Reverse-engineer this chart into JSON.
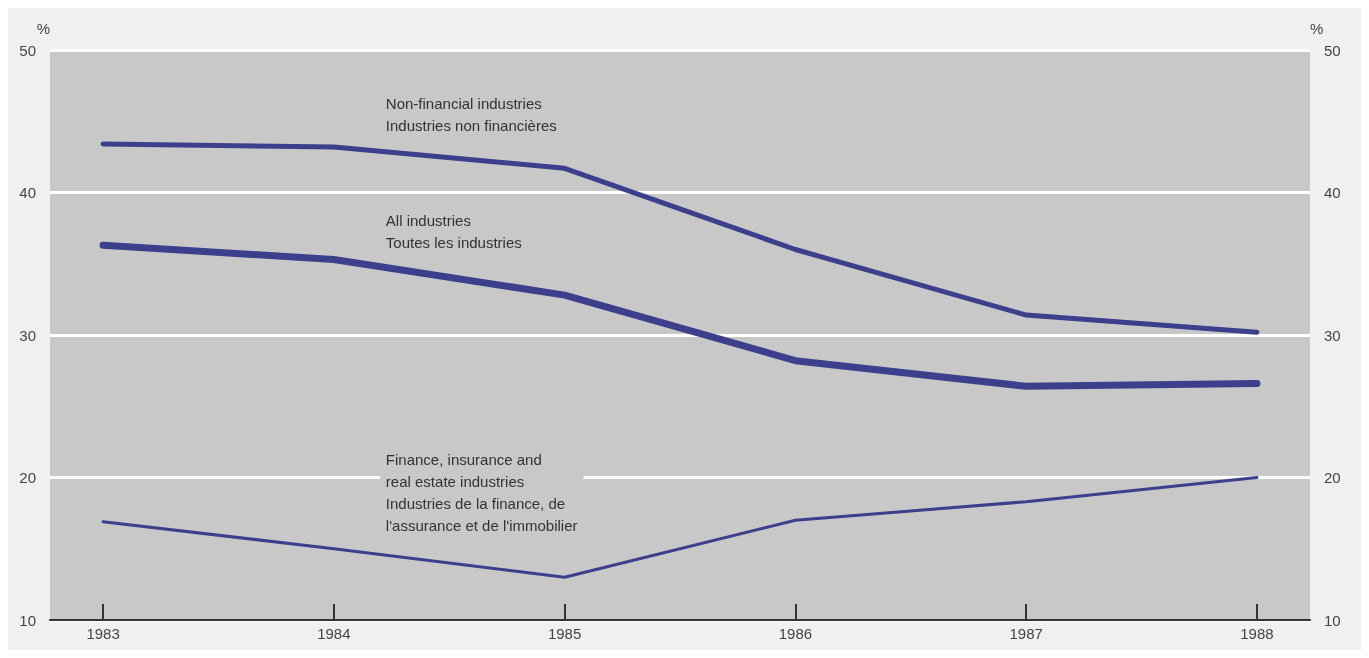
{
  "chart_data": {
    "type": "line",
    "ylabel": "%",
    "y2label": "%",
    "x": [
      1983,
      1984,
      1985,
      1986,
      1987,
      1988
    ],
    "xlim": [
      1982.77,
      1988.23
    ],
    "xticks": [
      1983,
      1984,
      1985,
      1986,
      1987,
      1988
    ],
    "ylim": [
      10,
      50
    ],
    "yticks": [
      10,
      20,
      30,
      40,
      50
    ],
    "y2lim": [
      10,
      50
    ],
    "y2ticks": [
      10,
      20,
      30,
      40,
      50
    ],
    "grid": "y",
    "legend": false,
    "marker": "none",
    "line_style": "solid",
    "series": [
      {
        "name": "Non-financial industries\nIndustries non financières",
        "color": "#3b3f8c",
        "values": [
          43.4,
          43.2,
          41.7,
          36.0,
          31.4,
          30.2
        ]
      },
      {
        "name": "All industries\nToutes les industries",
        "color": "#3b3f8c",
        "values": [
          36.3,
          35.3,
          32.8,
          28.2,
          26.4,
          26.6
        ]
      },
      {
        "name": "Finance, insurance and\nreal estate industries\nIndustries de la finance, de\nl'assurance et de l'immobilier",
        "color": "#3b3f8c",
        "values": [
          16.9,
          15.0,
          13.0,
          17.0,
          18.3,
          20.0
        ]
      }
    ]
  }
}
